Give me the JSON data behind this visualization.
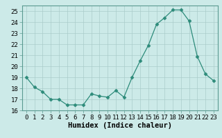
{
  "x": [
    0,
    1,
    2,
    3,
    4,
    5,
    6,
    7,
    8,
    9,
    10,
    11,
    12,
    13,
    14,
    15,
    16,
    17,
    18,
    19,
    20,
    21,
    22,
    23
  ],
  "y": [
    19.0,
    18.1,
    17.7,
    17.0,
    17.0,
    16.5,
    16.5,
    16.5,
    17.5,
    17.3,
    17.2,
    17.8,
    17.2,
    19.0,
    20.5,
    21.9,
    23.8,
    24.4,
    25.1,
    25.1,
    24.1,
    20.9,
    19.3,
    18.7
  ],
  "xlim": [
    -0.5,
    23.5
  ],
  "ylim": [
    16,
    25.5
  ],
  "yticks": [
    16,
    17,
    18,
    19,
    20,
    21,
    22,
    23,
    24,
    25
  ],
  "xticks": [
    0,
    1,
    2,
    3,
    4,
    5,
    6,
    7,
    8,
    9,
    10,
    11,
    12,
    13,
    14,
    15,
    16,
    17,
    18,
    19,
    20,
    21,
    22,
    23
  ],
  "xlabel": "Humidex (Indice chaleur)",
  "line_color": "#2d8b7a",
  "marker": "D",
  "marker_size": 2.5,
  "bg_color": "#cceae8",
  "grid_color": "#aaccca",
  "tick_label_fontsize": 6.5,
  "xlabel_fontsize": 7.5
}
